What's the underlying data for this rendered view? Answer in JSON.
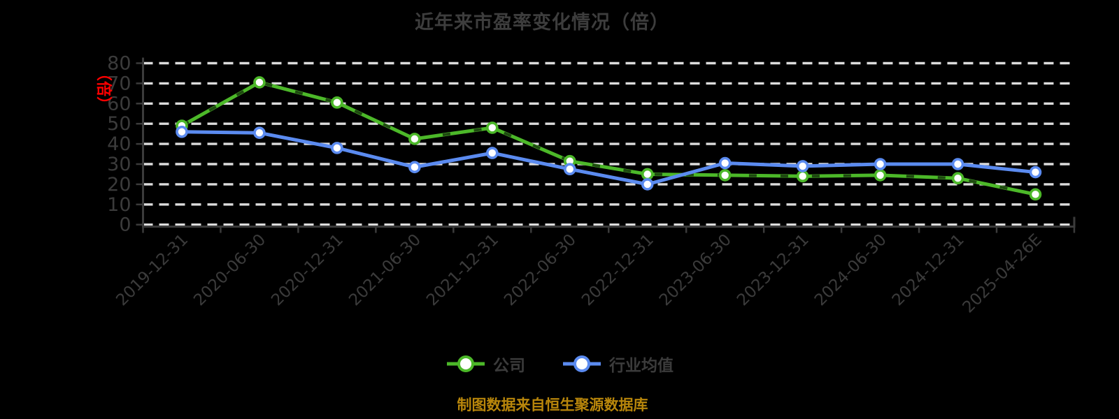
{
  "page": {
    "background_color": "#000000"
  },
  "chart": {
    "title": "近年来市盈率变化情况（倍）",
    "y_axis_unit": "（倍）",
    "unit_color": "#ff0000",
    "source_note": "制图数据来自恒生聚源数据库",
    "source_color": "#b8860b"
  },
  "chart_data": {
    "type": "line",
    "title": "近年来市盈率变化情况（倍）",
    "categories": [
      "2019-12-31",
      "2020-06-30",
      "2020-12-31",
      "2021-06-30",
      "2021-12-31",
      "2022-06-30",
      "2022-12-31",
      "2023-06-30",
      "2023-12-31",
      "2024-06-30",
      "2024-12-31",
      "2025-04-26E"
    ],
    "series": [
      {
        "name": "公司",
        "color": "#4cb829",
        "marker": "circle-white-fill",
        "line_style": "solid-with-dark-dash-overlay",
        "values": [
          49,
          70.5,
          60.5,
          42.5,
          48,
          31.5,
          25,
          24.5,
          24,
          24.5,
          23,
          15
        ]
      },
      {
        "name": "行业均值",
        "color": "#5b8bf0",
        "marker": "circle-white-fill",
        "line_style": "solid",
        "values": [
          46,
          45.5,
          38,
          28.5,
          35.5,
          27.5,
          20,
          30.5,
          29,
          30,
          30,
          26
        ]
      }
    ],
    "ylim": [
      0,
      80
    ],
    "yticks": [
      0,
      10,
      20,
      30,
      40,
      50,
      60,
      70,
      80
    ],
    "ylabel": "（倍）",
    "xlabel": "",
    "x_label_rotation": -45,
    "grid": "horizontal-dashed",
    "grid_color": "#dcdcdc",
    "axis_color": "#3b3b3b",
    "label_color": "#3b3b3b",
    "legend_position": "bottom"
  }
}
